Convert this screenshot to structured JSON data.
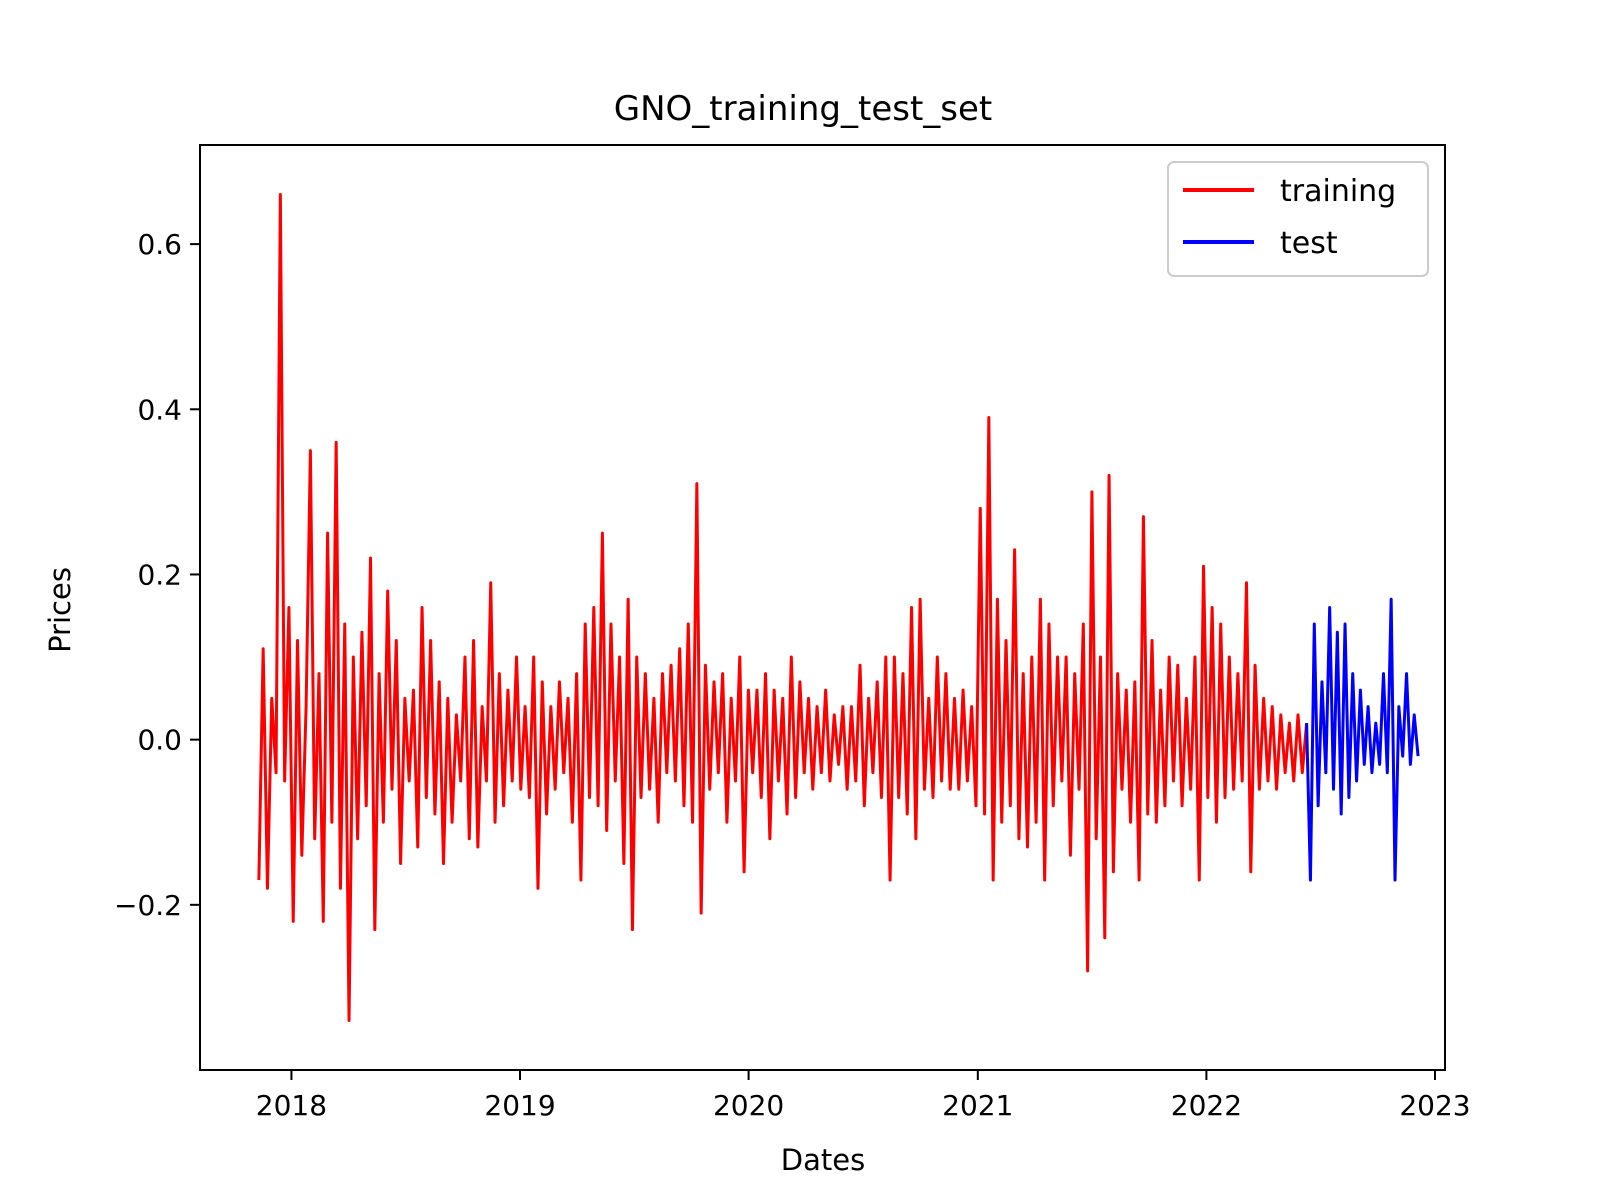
{
  "chart_data": {
    "type": "line",
    "title": "GNO_training_test_set",
    "xlabel": "Dates",
    "ylabel": "Prices",
    "x_ticks": [
      "2018",
      "2019",
      "2020",
      "2021",
      "2022",
      "2023"
    ],
    "y_ticks": [
      "−0.2",
      "0.0",
      "0.2",
      "0.4",
      "0.6"
    ],
    "x_range": [
      "2017-08-08",
      "2023-01-17"
    ],
    "ylim": [
      -0.4,
      0.72
    ],
    "grid": false,
    "legend": {
      "placement": "top-right",
      "entries": [
        "training",
        "test"
      ]
    },
    "series": [
      {
        "name": "training",
        "color": "#ff0000",
        "x_start": "2017-11-10",
        "x_end": "2022-06-10",
        "values": [
          -0.17,
          0.11,
          -0.18,
          0.05,
          -0.04,
          0.66,
          -0.05,
          0.16,
          -0.22,
          0.12,
          -0.14,
          0.04,
          0.35,
          -0.12,
          0.08,
          -0.22,
          0.25,
          -0.1,
          0.36,
          -0.18,
          0.14,
          -0.34,
          0.1,
          -0.12,
          0.13,
          -0.08,
          0.22,
          -0.23,
          0.08,
          -0.1,
          0.18,
          -0.06,
          0.12,
          -0.15,
          0.05,
          -0.05,
          0.06,
          -0.13,
          0.16,
          -0.07,
          0.12,
          -0.09,
          0.07,
          -0.15,
          0.05,
          -0.1,
          0.03,
          -0.05,
          0.1,
          -0.12,
          0.12,
          -0.13,
          0.04,
          -0.05,
          0.19,
          -0.1,
          0.08,
          -0.08,
          0.06,
          -0.05,
          0.1,
          -0.06,
          0.04,
          -0.07,
          0.1,
          -0.18,
          0.07,
          -0.09,
          0.04,
          -0.06,
          0.07,
          -0.04,
          0.05,
          -0.1,
          0.08,
          -0.17,
          0.14,
          -0.07,
          0.16,
          -0.08,
          0.25,
          -0.11,
          0.14,
          -0.05,
          0.1,
          -0.15,
          0.17,
          -0.23,
          0.1,
          -0.07,
          0.08,
          -0.06,
          0.05,
          -0.1,
          0.08,
          -0.04,
          0.09,
          -0.05,
          0.11,
          -0.08,
          0.14,
          -0.1,
          0.31,
          -0.21,
          0.09,
          -0.06,
          0.07,
          -0.04,
          0.08,
          -0.1,
          0.05,
          -0.05,
          0.1,
          -0.16,
          0.06,
          -0.04,
          0.06,
          -0.07,
          0.08,
          -0.12,
          0.06,
          -0.05,
          0.05,
          -0.09,
          0.1,
          -0.07,
          0.07,
          -0.04,
          0.05,
          -0.06,
          0.04,
          -0.04,
          0.06,
          -0.05,
          0.03,
          -0.03,
          0.04,
          -0.06,
          0.04,
          -0.05,
          0.09,
          -0.08,
          0.05,
          -0.04,
          0.07,
          -0.07,
          0.1,
          -0.17,
          0.1,
          -0.07,
          0.08,
          -0.09,
          0.16,
          -0.12,
          0.17,
          -0.06,
          0.05,
          -0.07,
          0.1,
          -0.05,
          0.08,
          -0.06,
          0.05,
          -0.06,
          0.06,
          -0.05,
          0.04,
          -0.08,
          0.28,
          -0.09,
          0.39,
          -0.17,
          0.17,
          -0.1,
          0.12,
          -0.08,
          0.23,
          -0.12,
          0.08,
          -0.13,
          0.1,
          -0.1,
          0.17,
          -0.17,
          0.14,
          -0.08,
          0.1,
          -0.05,
          0.1,
          -0.14,
          0.08,
          -0.06,
          0.14,
          -0.28,
          0.3,
          -0.12,
          0.1,
          -0.24,
          0.32,
          -0.16,
          0.08,
          -0.06,
          0.06,
          -0.1,
          0.07,
          -0.17,
          0.27,
          -0.09,
          0.12,
          -0.1,
          0.06,
          -0.08,
          0.1,
          -0.05,
          0.09,
          -0.08,
          0.05,
          -0.06,
          0.1,
          -0.17,
          0.21,
          -0.07,
          0.16,
          -0.1,
          0.14,
          -0.07,
          0.1,
          -0.06,
          0.08,
          -0.05,
          0.19,
          -0.16,
          0.09,
          -0.06,
          0.05,
          -0.05,
          0.04,
          -0.06,
          0.03,
          -0.04,
          0.02,
          -0.05,
          0.03,
          -0.04,
          0.02
        ]
      },
      {
        "name": "test",
        "color": "#0000ff",
        "x_start": "2022-06-10",
        "x_end": "2022-12-05",
        "values": [
          0.02,
          -0.17,
          0.14,
          -0.08,
          0.07,
          -0.04,
          0.16,
          -0.06,
          0.13,
          -0.09,
          0.14,
          -0.07,
          0.08,
          -0.05,
          0.06,
          -0.03,
          0.04,
          -0.04,
          0.02,
          -0.03,
          0.08,
          -0.04,
          0.17,
          -0.17,
          0.04,
          -0.02,
          0.08,
          -0.03,
          0.03,
          -0.02
        ]
      }
    ]
  }
}
